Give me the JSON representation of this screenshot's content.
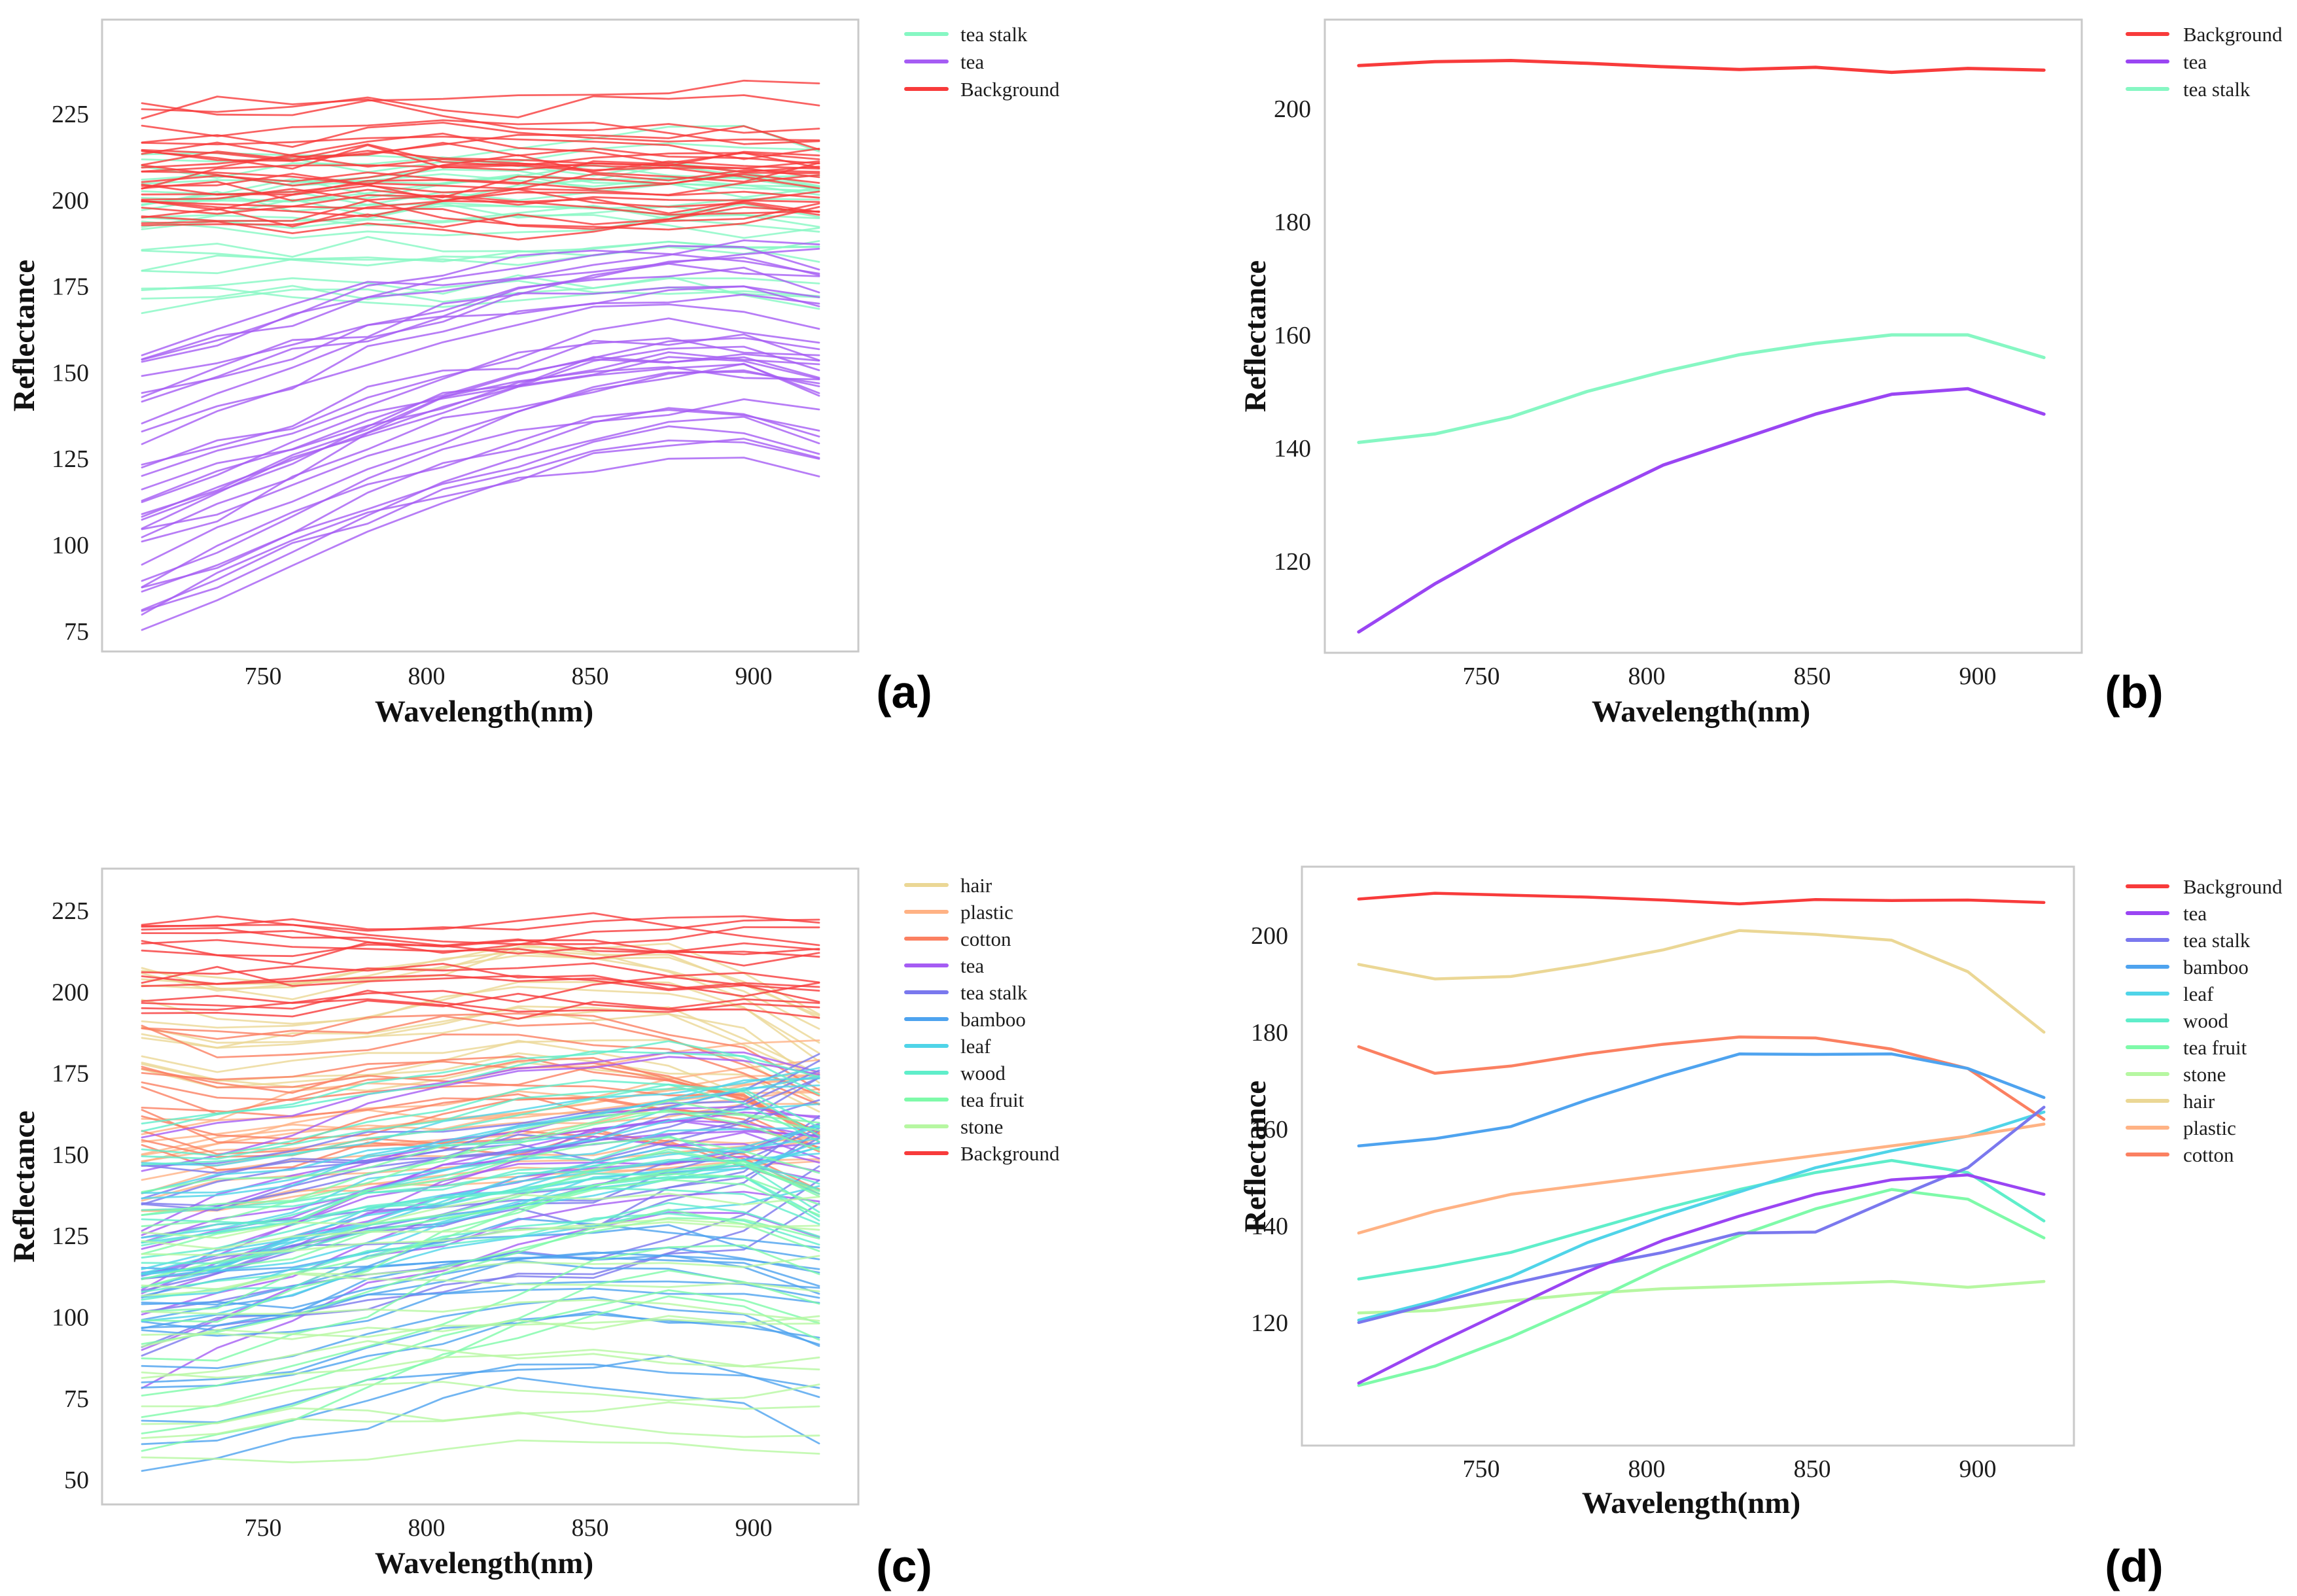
{
  "figure": {
    "background": "#ffffff",
    "xlabel": "Wavelength(nm)",
    "ylabel": "Reflectance"
  },
  "chart_data": [
    {
      "id": "a",
      "sublabel": "(a)",
      "type": "line",
      "mode": "samples",
      "title": "",
      "xlabel": "Wavelength(nm)",
      "ylabel": "Reflectance",
      "x_ticks": [
        750,
        800,
        850,
        900
      ],
      "y_ticks": [
        75,
        100,
        125,
        150,
        175,
        200,
        225
      ],
      "xlim": [
        701,
        932
      ],
      "ylim": [
        67,
        250
      ],
      "x_points": [
        713,
        736,
        759,
        782,
        805,
        828,
        851,
        874,
        897,
        920
      ],
      "grid": false,
      "legend_position": "right-outside-top",
      "legend": [
        {
          "label": "tea stalk",
          "color": "#86f7c3"
        },
        {
          "label": "tea",
          "color": "#a55cf4"
        },
        {
          "label": "Background",
          "color": "#f83b3b"
        }
      ],
      "classes": [
        {
          "name": "tea stalk",
          "color": "#86f7c3",
          "n_lines": 24,
          "start_range": [
            168,
            216
          ],
          "shape": [
            0,
            1,
            1.5,
            2,
            2.5,
            3,
            3.5,
            4,
            3,
            1
          ],
          "gain": [
            1,
            1
          ],
          "noise": 5,
          "seed": 11
        },
        {
          "name": "tea",
          "color": "#a55cf4",
          "n_lines": 33,
          "start_range": [
            75,
            160
          ],
          "shape": [
            0,
            8,
            15.5,
            23,
            29.5,
            34.5,
            39,
            42,
            43,
            39
          ],
          "gain": [
            1.3,
            0.72
          ],
          "noise": 5,
          "seed": 12
        },
        {
          "name": "Background",
          "color": "#f83b3b",
          "n_lines": 30,
          "start_range": [
            194,
            229
          ],
          "shape": [
            0,
            0.3,
            -0.2,
            0.4,
            0,
            -0.3,
            0.2,
            0,
            0.3,
            -0.2
          ],
          "gain": [
            1,
            1
          ],
          "noise": 5.5,
          "seed": 13
        }
      ]
    },
    {
      "id": "b",
      "sublabel": "(b)",
      "type": "line",
      "mode": "mean",
      "title": "",
      "xlabel": "Wavelength(nm)",
      "ylabel": "Reflectance",
      "x_ticks": [
        750,
        800,
        850,
        900
      ],
      "y_ticks": [
        120,
        140,
        160,
        180,
        200
      ],
      "xlim": [
        702,
        931
      ],
      "ylim": [
        102,
        214
      ],
      "x_points": [
        713,
        736,
        759,
        782,
        805,
        828,
        851,
        874,
        897,
        920
      ],
      "grid": false,
      "legend_position": "right-outside-top",
      "legend": [
        {
          "label": "Background",
          "color": "#f83b3b"
        },
        {
          "label": "tea",
          "color": "#9a45f3"
        },
        {
          "label": "tea stalk",
          "color": "#86f7c3"
        }
      ],
      "series": [
        {
          "name": "tea stalk",
          "color": "#86f7c3",
          "values": [
            141,
            142.5,
            145.5,
            150,
            153.5,
            156.5,
            158.5,
            160,
            160,
            156
          ]
        },
        {
          "name": "tea",
          "color": "#9a45f3",
          "values": [
            107.5,
            116,
            123.5,
            130.5,
            137,
            141.5,
            146,
            149.5,
            150.5,
            146
          ]
        },
        {
          "name": "Background",
          "color": "#f83b3b",
          "values": [
            207.6,
            208.3,
            208.5,
            208,
            207.4,
            206.9,
            207.3,
            206.4,
            207.1,
            206.8
          ]
        }
      ]
    },
    {
      "id": "c",
      "sublabel": "(c)",
      "type": "line",
      "mode": "samples",
      "title": "",
      "xlabel": "Wavelength(nm)",
      "ylabel": "Reflectance",
      "x_ticks": [
        750,
        800,
        850,
        900
      ],
      "y_ticks": [
        50,
        75,
        100,
        125,
        150,
        175,
        200,
        225
      ],
      "xlim": [
        701,
        932
      ],
      "ylim": [
        40,
        235
      ],
      "x_points": [
        713,
        736,
        759,
        782,
        805,
        828,
        851,
        874,
        897,
        920
      ],
      "grid": false,
      "legend_position": "right-outside-top",
      "legend": [
        {
          "label": "hair",
          "color": "#ebd795"
        },
        {
          "label": "plastic",
          "color": "#ffb284"
        },
        {
          "label": "cotton",
          "color": "#fb8061"
        },
        {
          "label": "tea",
          "color": "#a55cf4"
        },
        {
          "label": "tea stalk",
          "color": "#7a78ee"
        },
        {
          "label": "bamboo",
          "color": "#4ea3ef"
        },
        {
          "label": "leaf",
          "color": "#4fd4e8"
        },
        {
          "label": "wood",
          "color": "#5feeca"
        },
        {
          "label": "tea fruit",
          "color": "#7efaa9"
        },
        {
          "label": "stone",
          "color": "#b6f7a1"
        },
        {
          "label": "Background",
          "color": "#f83b3b"
        }
      ],
      "classes": [
        {
          "name": "hair",
          "color": "#ebd795",
          "n_lines": 14,
          "start_range": [
            173,
            208
          ],
          "shape": [
            0,
            -3,
            -2.5,
            0,
            3,
            7,
            6,
            5,
            -1.5,
            -14
          ],
          "gain": [
            1,
            1
          ],
          "noise": 5,
          "seed": 21
        },
        {
          "name": "plastic",
          "color": "#ffb284",
          "n_lines": 13,
          "start_range": [
            129,
            168
          ],
          "shape": [
            0,
            4.5,
            8,
            10,
            12,
            14,
            16,
            18,
            20,
            22.5
          ],
          "gain": [
            1,
            1
          ],
          "noise": 4.5,
          "seed": 22
        },
        {
          "name": "cotton",
          "color": "#fb8061",
          "n_lines": 14,
          "start_range": [
            152,
            198
          ],
          "shape": [
            0,
            -5.5,
            -4,
            -1.5,
            0.5,
            2,
            1.8,
            -0.5,
            -4.5,
            -15
          ],
          "gain": [
            1,
            1
          ],
          "noise": 5.5,
          "seed": 23
        },
        {
          "name": "tea",
          "color": "#a55cf4",
          "n_lines": 14,
          "start_range": [
            76,
            152
          ],
          "shape": [
            0,
            8,
            15.5,
            23,
            29.5,
            34.5,
            39,
            42,
            43,
            39
          ],
          "gain": [
            1.25,
            0.75
          ],
          "noise": 5,
          "seed": 24
        },
        {
          "name": "tea stalk",
          "color": "#7a78ee",
          "n_lines": 14,
          "start_range": [
            88,
            148
          ],
          "shape": [
            0,
            4,
            8,
            11.5,
            14.5,
            18.5,
            19,
            25.5,
            29.5,
            42
          ],
          "gain": [
            1.2,
            0.8
          ],
          "noise": 5,
          "seed": 25
        },
        {
          "name": "bamboo",
          "color": "#4ea3ef",
          "n_lines": 15,
          "start_range": [
            48,
            122
          ],
          "shape": [
            0,
            1.5,
            4,
            9.5,
            14.5,
            19,
            19,
            19,
            16.5,
            10
          ],
          "gain": [
            1.35,
            0.7
          ],
          "noise": 5,
          "seed": 26
        },
        {
          "name": "leaf",
          "color": "#4fd4e8",
          "n_lines": 14,
          "start_range": [
            93,
            148
          ],
          "shape": [
            0,
            4,
            9,
            16,
            21.5,
            26.5,
            31.5,
            35,
            38,
            43
          ],
          "gain": [
            1.15,
            0.8
          ],
          "noise": 4.5,
          "seed": 27
        },
        {
          "name": "wood",
          "color": "#5feeca",
          "n_lines": 14,
          "start_range": [
            106,
            165
          ],
          "shape": [
            0,
            2.5,
            5.5,
            10,
            14.5,
            18.5,
            22,
            24.5,
            22,
            12
          ],
          "gain": [
            1,
            1
          ],
          "noise": 5,
          "seed": 28
        },
        {
          "name": "tea fruit",
          "color": "#7efaa9",
          "n_lines": 14,
          "start_range": [
            58,
            136
          ],
          "shape": [
            0,
            4,
            10,
            17,
            24.5,
            31,
            36.5,
            40.5,
            38.5,
            30.5
          ],
          "gain": [
            1.25,
            0.75
          ],
          "noise": 5,
          "seed": 29
        },
        {
          "name": "stone",
          "color": "#b6f7a1",
          "n_lines": 14,
          "start_range": [
            57,
            133
          ],
          "shape": [
            0,
            0.5,
            2.5,
            4,
            5,
            5.5,
            6,
            6.5,
            5.5,
            6.5
          ],
          "gain": [
            1,
            1
          ],
          "noise": 4.5,
          "seed": 30
        },
        {
          "name": "Background",
          "color": "#f83b3b",
          "n_lines": 16,
          "start_range": [
            193,
            223
          ],
          "shape": [
            0,
            0.3,
            -0.2,
            0.4,
            0,
            -0.3,
            0.2,
            0,
            0.3,
            -0.2
          ],
          "gain": [
            1,
            1
          ],
          "noise": 5.5,
          "seed": 31
        }
      ]
    },
    {
      "id": "d",
      "sublabel": "(d)",
      "type": "line",
      "mode": "mean",
      "title": "",
      "xlabel": "Wavelength(nm)",
      "ylabel": "Reflectance",
      "x_ticks": [
        750,
        800,
        850,
        900
      ],
      "y_ticks": [
        120,
        140,
        160,
        180,
        200
      ],
      "xlim": [
        696,
        930
      ],
      "ylim": [
        94,
        214
      ],
      "x_points": [
        713,
        736,
        759,
        782,
        805,
        828,
        851,
        874,
        897,
        920
      ],
      "grid": false,
      "legend_position": "right-outside-top",
      "legend": [
        {
          "label": "Background",
          "color": "#f83b3b"
        },
        {
          "label": "tea",
          "color": "#9a45f3"
        },
        {
          "label": "tea stalk",
          "color": "#7a78ee"
        },
        {
          "label": "bamboo",
          "color": "#4ea3ef"
        },
        {
          "label": "leaf",
          "color": "#4fd4e8"
        },
        {
          "label": "wood",
          "color": "#5feeca"
        },
        {
          "label": "tea fruit",
          "color": "#7efaa9"
        },
        {
          "label": "stone",
          "color": "#b6f7a1"
        },
        {
          "label": "hair",
          "color": "#ebd795"
        },
        {
          "label": "plastic",
          "color": "#ffb284"
        },
        {
          "label": "cotton",
          "color": "#fb8061"
        }
      ],
      "series": [
        {
          "name": "stone",
          "color": "#b6f7a1",
          "values": [
            122,
            122.5,
            124.5,
            126,
            127,
            127.5,
            128,
            128.5,
            127.3,
            128.5
          ]
        },
        {
          "name": "tea fruit",
          "color": "#7efaa9",
          "values": [
            107,
            111,
            117,
            124,
            131.5,
            138,
            143.5,
            147.5,
            145.5,
            137.5
          ]
        },
        {
          "name": "wood",
          "color": "#5feeca",
          "values": [
            129,
            131.5,
            134.5,
            139,
            143.5,
            147.5,
            151,
            153.5,
            151,
            141
          ]
        },
        {
          "name": "leaf",
          "color": "#4fd4e8",
          "values": [
            120.5,
            124.5,
            129.5,
            136.5,
            142,
            147,
            152,
            155.5,
            158.5,
            163.5
          ]
        },
        {
          "name": "plastic",
          "color": "#ffb284",
          "values": [
            138.5,
            143,
            146.5,
            148.5,
            150.5,
            152.5,
            154.5,
            156.5,
            158.5,
            161
          ]
        },
        {
          "name": "hair",
          "color": "#ebd795",
          "values": [
            194,
            191,
            191.5,
            194,
            197,
            201,
            200.2,
            199,
            192.5,
            180
          ]
        },
        {
          "name": "cotton",
          "color": "#fb8061",
          "values": [
            177,
            171.5,
            173,
            175.5,
            177.5,
            179,
            178.8,
            176.5,
            172.5,
            162
          ]
        },
        {
          "name": "bamboo",
          "color": "#4ea3ef",
          "values": [
            156.5,
            158,
            160.5,
            166,
            171,
            175.5,
            175.4,
            175.5,
            172.5,
            166.5
          ]
        },
        {
          "name": "tea stalk",
          "color": "#7a78ee",
          "values": [
            120,
            124,
            128,
            131.5,
            134.5,
            138.5,
            138.7,
            145.5,
            152,
            164.5
          ]
        },
        {
          "name": "tea",
          "color": "#9a45f3",
          "values": [
            107.5,
            115.5,
            123,
            130.5,
            137,
            142,
            146.5,
            149.5,
            150.5,
            146.5
          ]
        },
        {
          "name": "Background",
          "color": "#f83b3b",
          "values": [
            207.5,
            208.7,
            208.3,
            207.9,
            207.3,
            206.5,
            207.4,
            207.2,
            207.3,
            206.8
          ]
        }
      ]
    }
  ]
}
